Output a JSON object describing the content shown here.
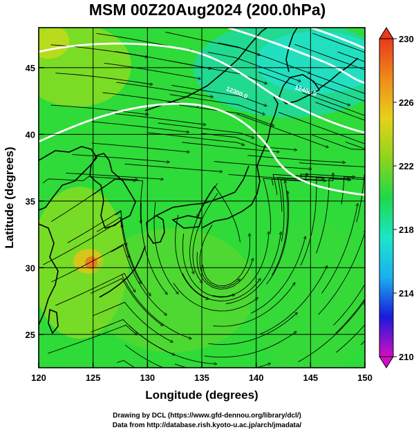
{
  "chart_data": {
    "type": "heatmap",
    "title": "MSM 00Z20Aug2024 (200.0hPa)",
    "xlabel": "Longitude (degrees)",
    "ylabel": "Latitude  (degrees)",
    "xlim": [
      120,
      150
    ],
    "ylim": [
      22.5,
      48
    ],
    "xticks": [
      "120",
      "125",
      "130",
      "135",
      "140",
      "145",
      "150"
    ],
    "yticks": [
      "25",
      "30",
      "35",
      "40",
      "45"
    ],
    "grid": true,
    "colorbar": {
      "min": 210,
      "max": 230,
      "tick_labels": [
        "230",
        "226",
        "222",
        "218",
        "214",
        "210"
      ],
      "colors": [
        "#d40ec4",
        "#1a1ad9",
        "#1ab0f0",
        "#1ce6c8",
        "#1ed84a",
        "#8ed41c",
        "#e6d21a",
        "#f08a1a",
        "#e83a1c"
      ]
    },
    "contours": [
      {
        "label": "12300.0"
      },
      {
        "label": "12400.0"
      }
    ],
    "features": [
      "temperature shading",
      "wind streamlines",
      "geopotential height contours",
      "coastlines"
    ]
  },
  "credits": {
    "line1": "Drawing by DCL (https://www.gfd-dennou.org/library/dcl/)",
    "line2": "Data from http://database.rish.kyoto-u.ac.jp/arch/jmadata/"
  }
}
